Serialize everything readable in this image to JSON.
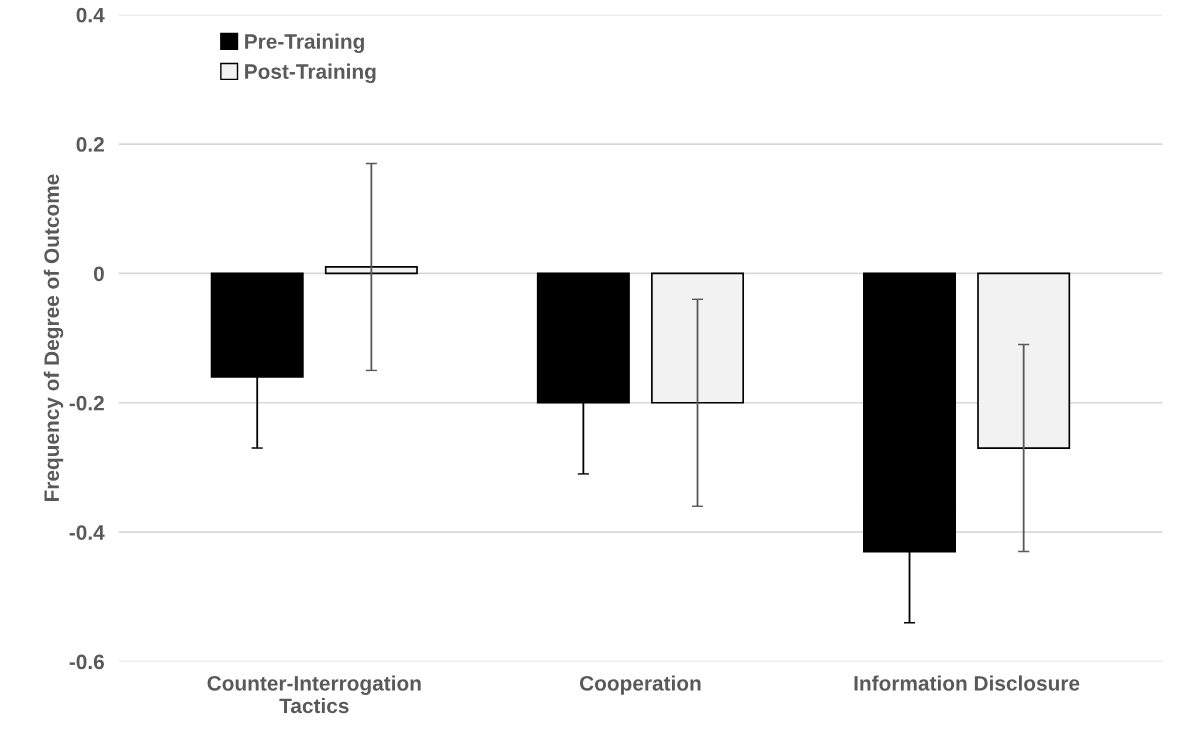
{
  "chart_data": {
    "type": "bar",
    "ylabel": "Frequency of Degree of Outcome",
    "categories": [
      "Counter-Interrogation\nTactics",
      "Cooperation",
      "Information Disclosure"
    ],
    "series": [
      {
        "name": "Pre-Training",
        "color": "#000000",
        "values": [
          -0.16,
          -0.2,
          -0.43
        ],
        "errors": [
          0.11,
          0.11,
          0.11
        ]
      },
      {
        "name": "Post-Training",
        "color": "#f2f2f2",
        "values": [
          0.01,
          -0.2,
          -0.27
        ],
        "errors": [
          0.16,
          0.16,
          0.16
        ]
      }
    ],
    "ylim": [
      -0.6,
      0.4
    ],
    "yticks": [
      {
        "value": -0.6,
        "label": "-0.6"
      },
      {
        "value": -0.4,
        "label": "-0.4"
      },
      {
        "value": -0.2,
        "label": "-0.2"
      },
      0,
      0.2,
      0.4
    ],
    "grid": "y",
    "legend": "top left"
  }
}
